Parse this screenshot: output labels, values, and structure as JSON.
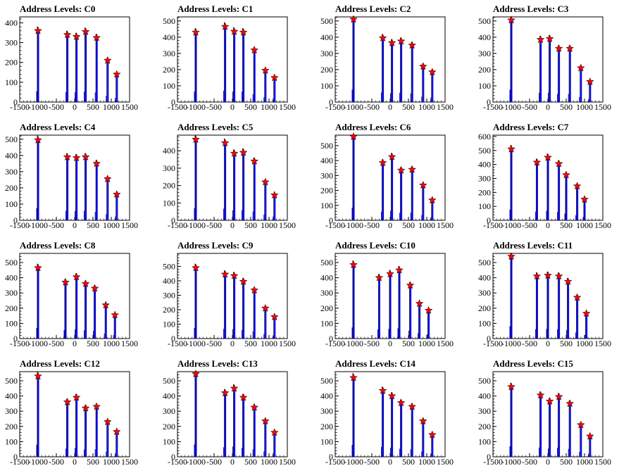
{
  "chart_data": [
    {
      "type": "bar",
      "title": "Address Levels: C0",
      "xlim": [
        -1500,
        1500
      ],
      "ylim": [
        0,
        430
      ],
      "yticks": [
        0,
        100,
        200,
        300,
        400
      ],
      "xticks": [
        -1500,
        -1000,
        -500,
        0,
        500,
        1000,
        1500
      ],
      "x": [
        -1000,
        -200,
        50,
        300,
        600,
        900,
        1150
      ],
      "values": [
        360,
        340,
        330,
        355,
        325,
        210,
        140
      ],
      "marker_color": "#ff0000",
      "bar_color": "#0000ff"
    },
    {
      "type": "bar",
      "title": "Address Levels: C1",
      "xlim": [
        -1500,
        1500
      ],
      "ylim": [
        0,
        525
      ],
      "yticks": [
        0,
        100,
        200,
        300,
        400,
        500
      ],
      "xticks": [
        -1500,
        -1000,
        -500,
        0,
        500,
        1000,
        1500
      ],
      "x": [
        -1000,
        -200,
        50,
        300,
        600,
        900,
        1150
      ],
      "values": [
        430,
        465,
        435,
        430,
        320,
        195,
        150
      ],
      "marker_color": "#ff0000",
      "bar_color": "#0000ff"
    },
    {
      "type": "bar",
      "title": "Address Levels: C2",
      "xlim": [
        -1500,
        1500
      ],
      "ylim": [
        0,
        525
      ],
      "yticks": [
        0,
        100,
        200,
        300,
        400,
        500
      ],
      "xticks": [
        -1500,
        -1000,
        -500,
        0,
        500,
        1000,
        1500
      ],
      "x": [
        -1000,
        -200,
        50,
        300,
        600,
        900,
        1150
      ],
      "values": [
        510,
        395,
        365,
        375,
        350,
        220,
        185
      ],
      "marker_color": "#ff0000",
      "bar_color": "#0000ff"
    },
    {
      "type": "bar",
      "title": "Address Levels: C3",
      "xlim": [
        -1500,
        1500
      ],
      "ylim": [
        0,
        525
      ],
      "yticks": [
        0,
        100,
        200,
        300,
        400,
        500
      ],
      "xticks": [
        -1500,
        -1000,
        -500,
        0,
        500,
        1000,
        1500
      ],
      "x": [
        -1000,
        -200,
        50,
        300,
        600,
        900,
        1150
      ],
      "values": [
        505,
        385,
        390,
        330,
        330,
        210,
        125
      ],
      "marker_color": "#ff0000",
      "bar_color": "#0000ff"
    },
    {
      "type": "bar",
      "title": "Address Levels: C4",
      "xlim": [
        -1500,
        1500
      ],
      "ylim": [
        0,
        525
      ],
      "yticks": [
        0,
        100,
        200,
        300,
        400,
        500
      ],
      "xticks": [
        -1500,
        -1000,
        -500,
        0,
        500,
        1000,
        1500
      ],
      "x": [
        -1000,
        -200,
        50,
        300,
        600,
        900,
        1150
      ],
      "values": [
        495,
        390,
        385,
        390,
        350,
        255,
        160
      ],
      "marker_color": "#ff0000",
      "bar_color": "#0000ff"
    },
    {
      "type": "bar",
      "title": "Address Levels: C5",
      "xlim": [
        -1500,
        1500
      ],
      "ylim": [
        0,
        490
      ],
      "yticks": [
        0,
        100,
        200,
        300,
        400
      ],
      "xticks": [
        -1500,
        -1000,
        -500,
        0,
        500,
        1000,
        1500
      ],
      "x": [
        -1000,
        -200,
        50,
        300,
        600,
        900,
        1150
      ],
      "values": [
        465,
        445,
        385,
        390,
        340,
        220,
        145
      ],
      "marker_color": "#ff0000",
      "bar_color": "#0000ff"
    },
    {
      "type": "bar",
      "title": "Address Levels: C6",
      "xlim": [
        -1500,
        1500
      ],
      "ylim": [
        0,
        570
      ],
      "yticks": [
        0,
        100,
        200,
        300,
        400,
        500
      ],
      "xticks": [
        -1500,
        -1000,
        -500,
        0,
        500,
        1000,
        1500
      ],
      "x": [
        -1000,
        -200,
        50,
        300,
        600,
        900,
        1150
      ],
      "values": [
        560,
        385,
        425,
        335,
        340,
        235,
        135
      ],
      "marker_color": "#ff0000",
      "bar_color": "#0000ff"
    },
    {
      "type": "bar",
      "title": "Address Levels: C7",
      "xlim": [
        -1500,
        1500
      ],
      "ylim": [
        0,
        610
      ],
      "yticks": [
        0,
        100,
        200,
        300,
        400,
        500,
        600
      ],
      "xticks": [
        -1500,
        -1000,
        -500,
        0,
        500,
        1000,
        1500
      ],
      "x": [
        -1000,
        -300,
        0,
        300,
        500,
        800,
        1000
      ],
      "values": [
        510,
        415,
        450,
        405,
        325,
        245,
        150
      ],
      "marker_color": "#ff0000",
      "bar_color": "#0000ff"
    },
    {
      "type": "bar",
      "title": "Address Levels: C8",
      "xlim": [
        -1500,
        1500
      ],
      "ylim": [
        0,
        560
      ],
      "yticks": [
        0,
        100,
        200,
        300,
        400,
        500
      ],
      "xticks": [
        -1500,
        -1000,
        -500,
        0,
        500,
        1000,
        1500
      ],
      "x": [
        -1000,
        -250,
        50,
        300,
        550,
        850,
        1100
      ],
      "values": [
        465,
        370,
        405,
        360,
        330,
        220,
        155
      ],
      "marker_color": "#ff0000",
      "bar_color": "#0000ff"
    },
    {
      "type": "bar",
      "title": "Address Levels: C9",
      "xlim": [
        -1500,
        1500
      ],
      "ylim": [
        0,
        590
      ],
      "yticks": [
        0,
        100,
        200,
        300,
        400,
        500
      ],
      "xticks": [
        -1500,
        -1000,
        -500,
        0,
        500,
        1000,
        1500
      ],
      "x": [
        -1000,
        -200,
        50,
        300,
        600,
        900,
        1150
      ],
      "values": [
        490,
        445,
        435,
        395,
        335,
        210,
        150
      ],
      "marker_color": "#ff0000",
      "bar_color": "#0000ff"
    },
    {
      "type": "bar",
      "title": "Address Levels: C10",
      "xlim": [
        -1500,
        1500
      ],
      "ylim": [
        0,
        560
      ],
      "yticks": [
        0,
        100,
        200,
        300,
        400,
        500
      ],
      "xticks": [
        -1500,
        -1000,
        -500,
        0,
        500,
        1000,
        1500
      ],
      "x": [
        -1000,
        -300,
        0,
        250,
        550,
        800,
        1050
      ],
      "values": [
        485,
        400,
        425,
        450,
        350,
        230,
        185
      ],
      "marker_color": "#ff0000",
      "bar_color": "#0000ff"
    },
    {
      "type": "bar",
      "title": "Address Levels: C11",
      "xlim": [
        -1500,
        1500
      ],
      "ylim": [
        0,
        560
      ],
      "yticks": [
        0,
        100,
        200,
        300,
        400,
        500
      ],
      "xticks": [
        -1500,
        -1000,
        -500,
        0,
        500,
        1000,
        1500
      ],
      "x": [
        -1000,
        -300,
        0,
        300,
        550,
        800,
        1050
      ],
      "values": [
        540,
        410,
        415,
        410,
        375,
        270,
        165
      ],
      "marker_color": "#ff0000",
      "bar_color": "#0000ff"
    },
    {
      "type": "bar",
      "title": "Address Levels: C12",
      "xlim": [
        -1500,
        1500
      ],
      "ylim": [
        0,
        560
      ],
      "yticks": [
        0,
        100,
        200,
        300,
        400,
        500
      ],
      "xticks": [
        -1500,
        -1000,
        -500,
        0,
        500,
        1000,
        1500
      ],
      "x": [
        -1000,
        -200,
        50,
        300,
        600,
        900,
        1150
      ],
      "values": [
        530,
        360,
        390,
        320,
        330,
        230,
        165
      ],
      "marker_color": "#ff0000",
      "bar_color": "#0000ff"
    },
    {
      "type": "bar",
      "title": "Address Levels: C13",
      "xlim": [
        -1500,
        1500
      ],
      "ylim": [
        0,
        560
      ],
      "yticks": [
        0,
        100,
        200,
        300,
        400,
        500
      ],
      "xticks": [
        -1500,
        -1000,
        -500,
        0,
        500,
        1000,
        1500
      ],
      "x": [
        -1000,
        -200,
        50,
        300,
        600,
        900,
        1150
      ],
      "values": [
        545,
        420,
        450,
        390,
        325,
        235,
        160
      ],
      "marker_color": "#ff0000",
      "bar_color": "#0000ff"
    },
    {
      "type": "bar",
      "title": "Address Levels: C14",
      "xlim": [
        -1500,
        1500
      ],
      "ylim": [
        0,
        560
      ],
      "yticks": [
        0,
        100,
        200,
        300,
        400,
        500
      ],
      "xticks": [
        -1500,
        -1000,
        -500,
        0,
        500,
        1000,
        1500
      ],
      "x": [
        -1000,
        -200,
        50,
        300,
        600,
        900,
        1150
      ],
      "values": [
        520,
        435,
        400,
        355,
        330,
        235,
        145
      ],
      "marker_color": "#ff0000",
      "bar_color": "#0000ff"
    },
    {
      "type": "bar",
      "title": "Address Levels: C15",
      "xlim": [
        -1500,
        1500
      ],
      "ylim": [
        0,
        560
      ],
      "yticks": [
        0,
        100,
        200,
        300,
        400,
        500
      ],
      "xticks": [
        -1500,
        -1000,
        -500,
        0,
        500,
        1000,
        1500
      ],
      "x": [
        -1000,
        -200,
        50,
        300,
        600,
        900,
        1150
      ],
      "values": [
        460,
        405,
        365,
        395,
        350,
        210,
        135
      ],
      "marker_color": "#ff0000",
      "bar_color": "#0000ff"
    }
  ]
}
